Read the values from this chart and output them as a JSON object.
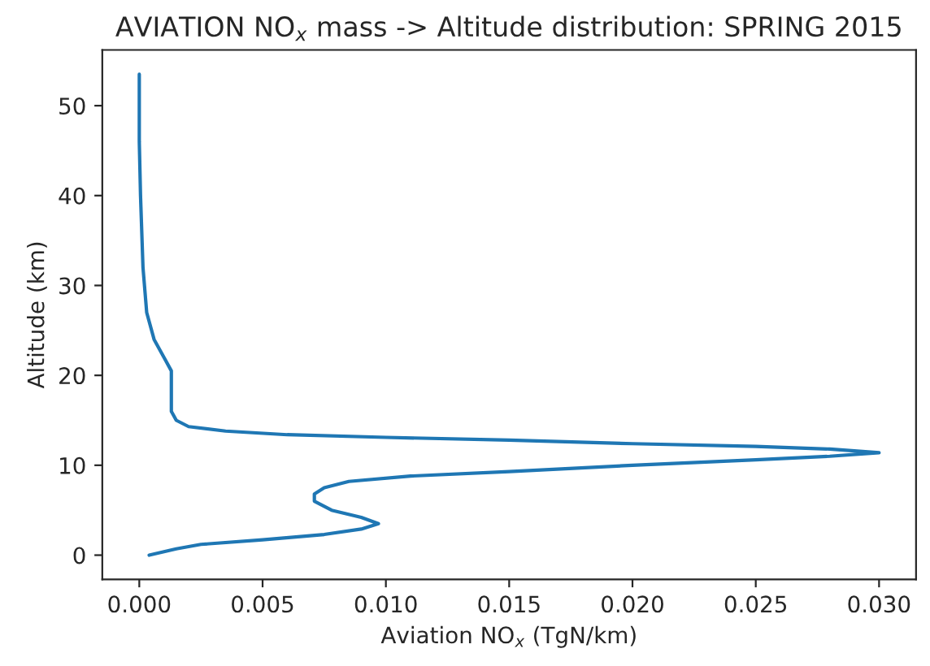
{
  "chart_data": {
    "type": "line",
    "title": "AVIATION NO$_{x}$ mass -> Altitude distribution: SPRING 2015",
    "xlabel": "Aviation NO$_{x}$ (TgN/km)",
    "ylabel": "Altitude (km)",
    "series": [
      {
        "color": "#1f77b4",
        "x": [
          0.0004,
          0.0015,
          0.0025,
          0.005,
          0.0075,
          0.009,
          0.0097,
          0.009,
          0.0078,
          0.0071,
          0.0071,
          0.0075,
          0.0085,
          0.011,
          0.015,
          0.02,
          0.025,
          0.028,
          0.03,
          0.028,
          0.025,
          0.02,
          0.015,
          0.01,
          0.006,
          0.0035,
          0.002,
          0.0015,
          0.0013,
          0.0013,
          0.0013,
          0.001,
          0.0006,
          0.0003,
          0.00015,
          5e-05,
          0.0,
          0.0
        ],
        "values": [
          0,
          0.7,
          1.2,
          1.7,
          2.3,
          2.9,
          3.5,
          4.2,
          5.0,
          6.0,
          6.8,
          7.5,
          8.2,
          8.8,
          9.3,
          10.0,
          10.6,
          11.0,
          11.4,
          11.8,
          12.1,
          12.4,
          12.8,
          13.1,
          13.4,
          13.8,
          14.3,
          15.0,
          16.0,
          18.0,
          20.5,
          22.0,
          24.0,
          27.0,
          32.0,
          40.0,
          46.0,
          53.5
        ]
      }
    ],
    "xlim": [
      -0.0015,
      0.0315
    ],
    "xticks": [
      {
        "value": 0,
        "label": "0.000"
      },
      {
        "value": 0.005,
        "label": "0.005"
      },
      {
        "value": 0.01,
        "label": "0.010"
      },
      {
        "value": 0.015,
        "label": "0.015"
      },
      {
        "value": 0.02,
        "label": "0.020"
      },
      {
        "value": 0.025,
        "label": "0.025"
      },
      {
        "value": 0.03,
        "label": "0.030"
      }
    ],
    "ylim": [
      -2.7,
      56.2
    ],
    "yticks": [
      0,
      10,
      20,
      30,
      40,
      50
    ]
  }
}
